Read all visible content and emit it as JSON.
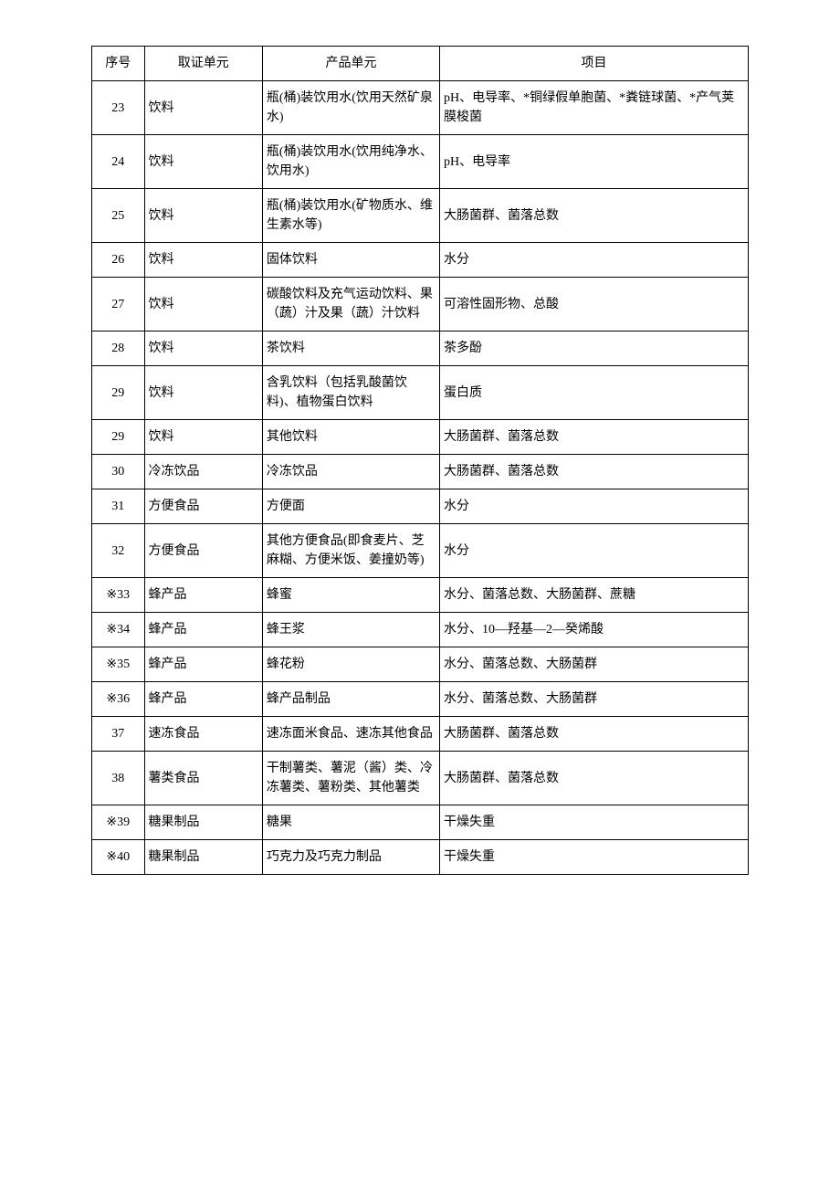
{
  "table": {
    "headers": {
      "seq": "序号",
      "cert": "取证单元",
      "prod": "产品单元",
      "item": "项目"
    },
    "rows": [
      {
        "seq": "23",
        "cert": "饮料",
        "prod": "瓶(桶)装饮用水(饮用天然矿泉水)",
        "item": "pH、电导率、*铜绿假单胞菌、*粪链球菌、*产气荚膜梭菌"
      },
      {
        "seq": "24",
        "cert": "饮料",
        "prod": "瓶(桶)装饮用水(饮用纯净水、饮用水)",
        "item": "pH、电导率"
      },
      {
        "seq": "25",
        "cert": "饮料",
        "prod": "瓶(桶)装饮用水(矿物质水、维生素水等)",
        "item": "大肠菌群、菌落总数"
      },
      {
        "seq": "26",
        "cert": "饮料",
        "prod": "固体饮料",
        "item": "水分"
      },
      {
        "seq": "27",
        "cert": "饮料",
        "prod": "碳酸饮料及充气运动饮料、果（蔬）汁及果（蔬）汁饮料",
        "item": "可溶性固形物、总酸"
      },
      {
        "seq": "28",
        "cert": "饮料",
        "prod": "茶饮料",
        "item": "茶多酚"
      },
      {
        "seq": "29",
        "cert": "饮料",
        "prod": "含乳饮料（包括乳酸菌饮料)、植物蛋白饮料",
        "item": "蛋白质"
      },
      {
        "seq": "29",
        "cert": "饮料",
        "prod": "其他饮料",
        "item": "大肠菌群、菌落总数"
      },
      {
        "seq": "30",
        "cert": "冷冻饮品",
        "prod": "冷冻饮品",
        "item": "大肠菌群、菌落总数"
      },
      {
        "seq": "31",
        "cert": "方便食品",
        "prod": "方便面",
        "item": "水分"
      },
      {
        "seq": "32",
        "cert": "方便食品",
        "prod": "其他方便食品(即食麦片、芝麻糊、方便米饭、姜撞奶等)",
        "item": "水分"
      },
      {
        "seq": "※33",
        "cert": "蜂产品",
        "prod": "蜂蜜",
        "item": "水分、菌落总数、大肠菌群、蔗糖"
      },
      {
        "seq": "※34",
        "cert": "蜂产品",
        "prod": "蜂王浆",
        "item": "水分、10—羟基—2—癸烯酸"
      },
      {
        "seq": "※35",
        "cert": "蜂产品",
        "prod": "蜂花粉",
        "item": "水分、菌落总数、大肠菌群"
      },
      {
        "seq": "※36",
        "cert": "蜂产品",
        "prod": "蜂产品制品",
        "item": "水分、菌落总数、大肠菌群"
      },
      {
        "seq": "37",
        "cert": "速冻食品",
        "prod": "速冻面米食品、速冻其他食品",
        "item": "大肠菌群、菌落总数"
      },
      {
        "seq": "38",
        "cert": "薯类食品",
        "prod": "干制薯类、薯泥（酱）类、冷冻薯类、薯粉类、其他薯类",
        "item": "大肠菌群、菌落总数"
      },
      {
        "seq": "※39",
        "cert": "糖果制品",
        "prod": "糖果",
        "item": "干燥失重"
      },
      {
        "seq": "※40",
        "cert": "糖果制品",
        "prod": "巧克力及巧克力制品",
        "item": "干燥失重"
      }
    ]
  },
  "styling": {
    "background_color": "#ffffff",
    "border_color": "#000000",
    "text_color": "#000000",
    "font_size": 14,
    "font_family": "SimSun"
  }
}
